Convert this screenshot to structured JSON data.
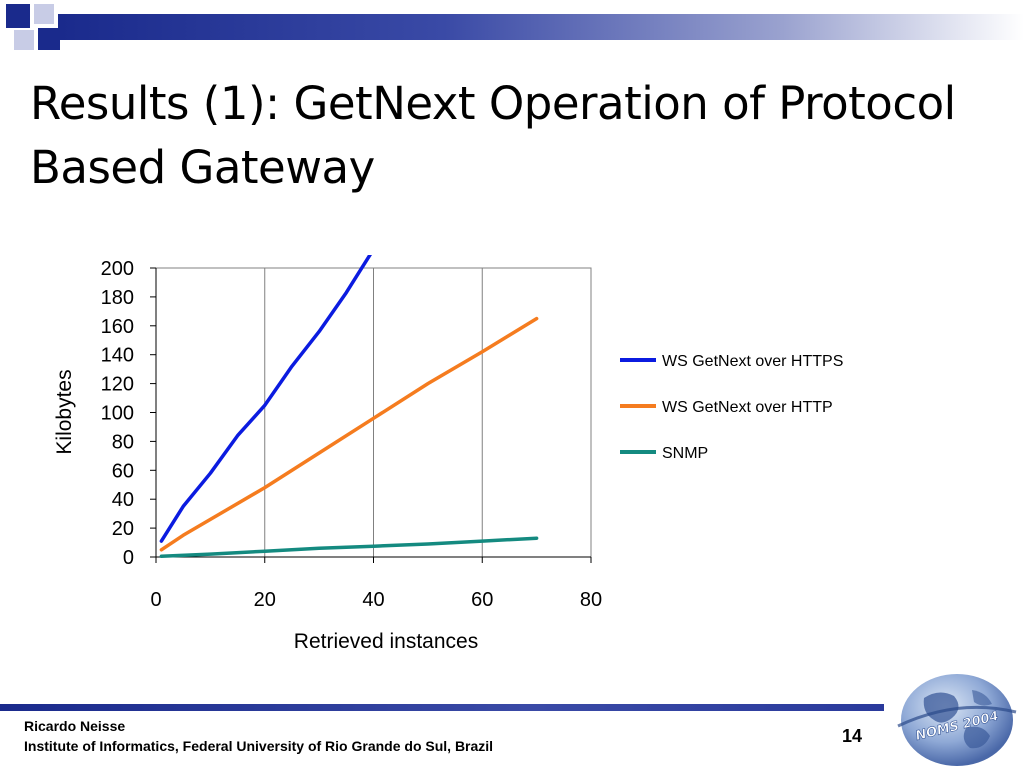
{
  "slide": {
    "title": "Results (1): GetNext Operation of Protocol Based Gateway",
    "footer_author": "Ricardo Neisse",
    "footer_institute": "Institute of Informatics, Federal University of Rio Grande do Sul, Brazil",
    "page_number": "14",
    "logo_text": "NOMS 2004"
  },
  "colors": {
    "accent_blue": "#1a2a8c",
    "https": "#0b1be0",
    "http": "#f57c1f",
    "snmp": "#148a80"
  },
  "chart_data": {
    "type": "line",
    "title": "",
    "xlabel": "Retrieved instances",
    "ylabel": "Kilobytes",
    "xlim": [
      0,
      80
    ],
    "ylim": [
      0,
      200
    ],
    "xticks": [
      "0",
      "20",
      "40",
      "60",
      "80"
    ],
    "yticks": [
      "0",
      "20",
      "40",
      "60",
      "80",
      "100",
      "120",
      "140",
      "160",
      "180",
      "200"
    ],
    "grid": "vertical",
    "legend": "right",
    "series": [
      {
        "name": "WS GetNext over HTTPS",
        "color": "#0b1be0",
        "x": [
          1,
          5,
          10,
          15,
          20,
          25,
          30,
          35,
          39.5
        ],
        "y": [
          11,
          35,
          58,
          84,
          105,
          132,
          156,
          183,
          210
        ]
      },
      {
        "name": "WS GetNext over HTTP",
        "color": "#f57c1f",
        "x": [
          1,
          5,
          10,
          20,
          30,
          40,
          50,
          60,
          70
        ],
        "y": [
          5,
          15,
          26,
          48,
          72,
          96,
          120,
          142,
          165
        ]
      },
      {
        "name": "SNMP",
        "color": "#148a80",
        "x": [
          1,
          10,
          20,
          30,
          40,
          50,
          60,
          70
        ],
        "y": [
          0.5,
          2,
          4,
          6,
          7.5,
          9,
          11,
          13
        ]
      }
    ]
  }
}
